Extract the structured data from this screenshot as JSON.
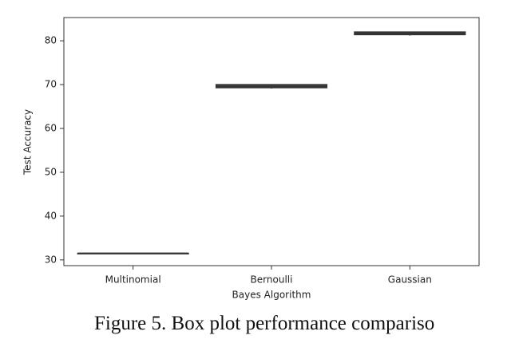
{
  "chart_data": {
    "type": "box",
    "x_label": "Bayes Algorithm",
    "y_label": "Test Accuracy",
    "categories": [
      "Multinomial",
      "Bernoulli",
      "Gaussian"
    ],
    "min": [
      31.5,
      69.1,
      81.2
    ],
    "q1": [
      31.5,
      69.3,
      81.4
    ],
    "median": [
      31.5,
      69.6,
      81.7
    ],
    "q3": [
      31.5,
      70.0,
      82.0
    ],
    "max": [
      31.5,
      70.0,
      82.0
    ],
    "color": "#5a5a5a",
    "ylim": [
      28.7,
      85.3
    ],
    "yticks": [
      30,
      40,
      50,
      60,
      70,
      80
    ]
  },
  "caption": "Figure 5. Box plot performance compariso"
}
